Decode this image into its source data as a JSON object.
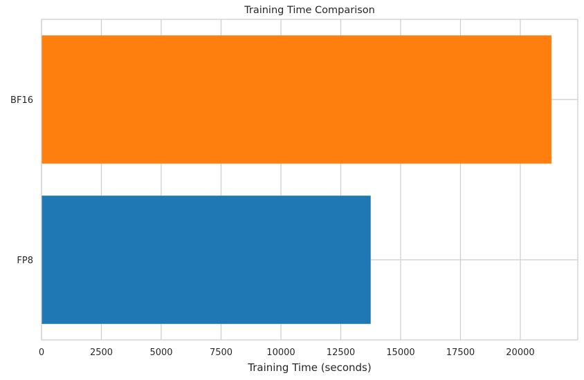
{
  "chart_data": {
    "type": "bar",
    "orientation": "horizontal",
    "title": "Training Time Comparison",
    "xlabel": "Training Time (seconds)",
    "ylabel": "",
    "categories": [
      "FP8",
      "BF16"
    ],
    "values": [
      13750,
      21300
    ],
    "colors": [
      "#1f77b4",
      "#ff7f0e"
    ],
    "xlim": [
      0,
      22400
    ],
    "xticks": [
      0,
      2500,
      5000,
      7500,
      10000,
      12500,
      15000,
      17500,
      20000
    ],
    "grid": true,
    "legend": "none"
  }
}
